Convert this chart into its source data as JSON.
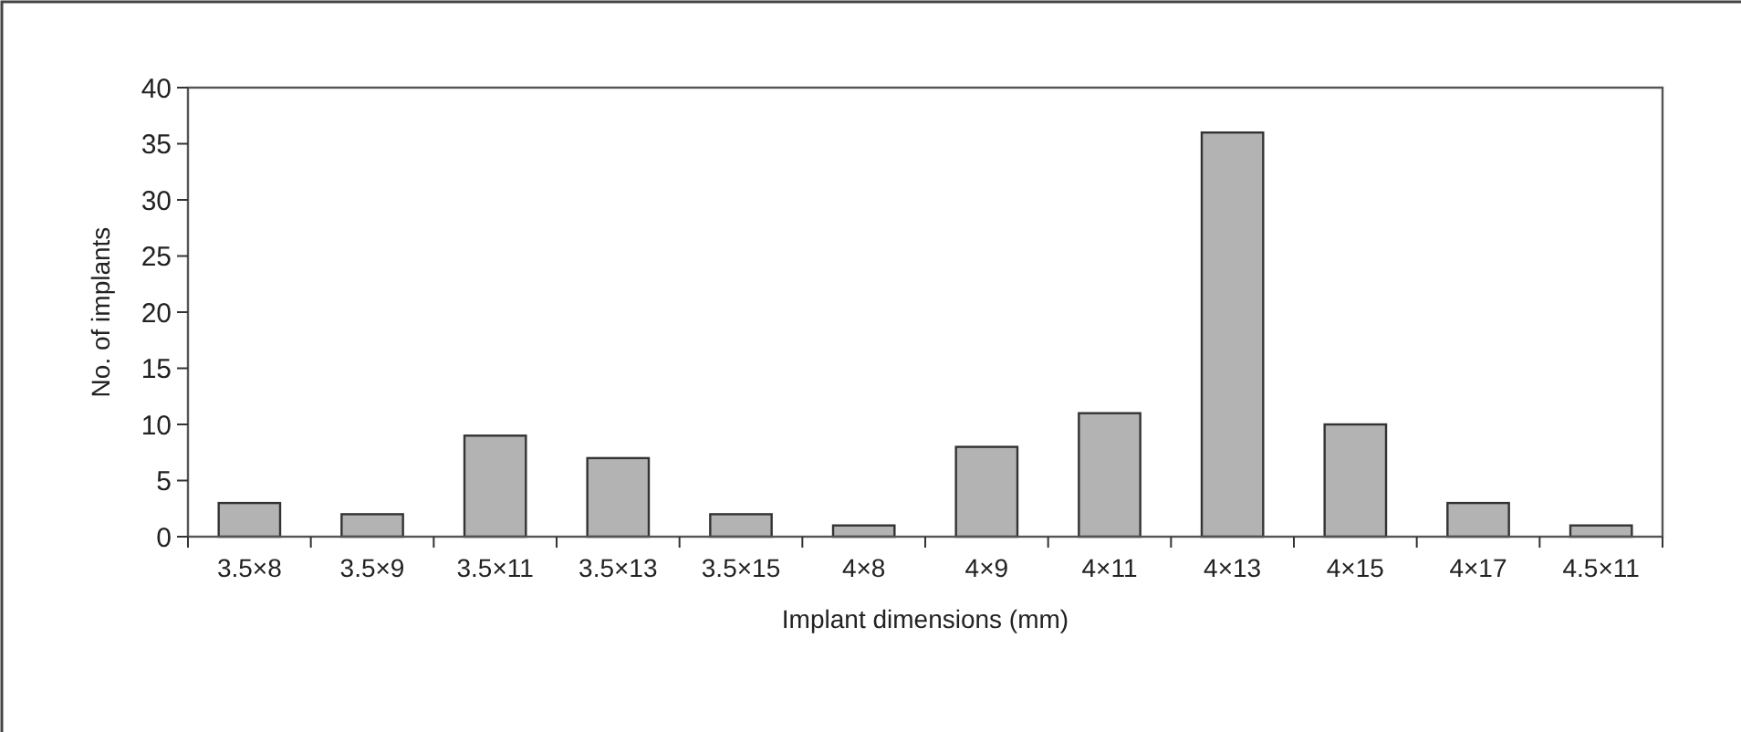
{
  "chart_data": {
    "type": "bar",
    "xlabel": "Implant dimensions (mm)",
    "ylabel": "No. of implants",
    "categories": [
      "3.5×8",
      "3.5×9",
      "3.5×11",
      "3.5×13",
      "3.5×15",
      "4×8",
      "4×9",
      "4×11",
      "4×13",
      "4×15",
      "4×17",
      "4.5×11"
    ],
    "values": [
      3,
      2,
      9,
      7,
      2,
      1,
      8,
      11,
      36,
      10,
      3,
      1
    ],
    "color": "#b3b3b3",
    "ylim": [
      0,
      40
    ],
    "yticks": [
      0,
      5,
      10,
      15,
      20,
      25,
      30,
      35,
      40
    ],
    "grid": false
  }
}
